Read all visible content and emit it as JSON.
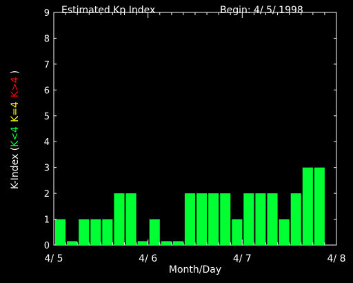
{
  "chart_data": {
    "type": "bar",
    "title": "Estimated Kp Index",
    "begin_label": "Begin: 4/ 5/ 1998",
    "xlabel": "Month/Day",
    "ylabel": {
      "prefix": "K-Index (",
      "low": "K<4",
      "mid": "K=4",
      "high": "K>4",
      "suffix": ")"
    },
    "ylim": [
      0,
      9
    ],
    "yticks": [
      "0",
      "1",
      "2",
      "3",
      "4",
      "5",
      "6",
      "7",
      "8",
      "9"
    ],
    "xlim_days": [
      0,
      3
    ],
    "xticks": [
      "4/ 5",
      "4/ 6",
      "4/ 7",
      "4/ 8"
    ],
    "interval_hours": 3,
    "values": [
      1,
      0.15,
      1,
      1,
      1,
      2,
      2,
      0.15,
      1,
      0.15,
      0.15,
      2,
      2,
      2,
      2,
      1,
      2,
      2,
      2,
      1,
      2,
      3,
      3
    ],
    "colors": {
      "low": "#00ff33",
      "mid": "#ffff00",
      "high": "#ff0000",
      "axis": "#ffffff",
      "background": "#000000"
    }
  }
}
